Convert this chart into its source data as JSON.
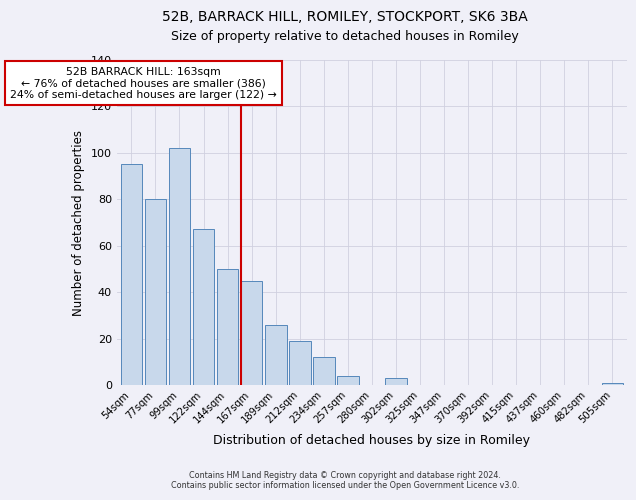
{
  "title": "52B, BARRACK HILL, ROMILEY, STOCKPORT, SK6 3BA",
  "subtitle": "Size of property relative to detached houses in Romiley",
  "xlabel": "Distribution of detached houses by size in Romiley",
  "ylabel": "Number of detached properties",
  "categories": [
    "54sqm",
    "77sqm",
    "99sqm",
    "122sqm",
    "144sqm",
    "167sqm",
    "189sqm",
    "212sqm",
    "234sqm",
    "257sqm",
    "280sqm",
    "302sqm",
    "325sqm",
    "347sqm",
    "370sqm",
    "392sqm",
    "415sqm",
    "437sqm",
    "460sqm",
    "482sqm",
    "505sqm"
  ],
  "values": [
    95,
    80,
    102,
    67,
    50,
    45,
    26,
    19,
    12,
    4,
    0,
    3,
    0,
    0,
    0,
    0,
    0,
    0,
    0,
    0,
    1
  ],
  "bar_color": "#c8d8eb",
  "bar_edge_color": "#5588bb",
  "vline_x_idx": 5,
  "annotation_title": "52B BARRACK HILL: 163sqm",
  "annotation_line1": "← 76% of detached houses are smaller (386)",
  "annotation_line2": "24% of semi-detached houses are larger (122) →",
  "annotation_box_color": "#cc0000",
  "ylim": [
    0,
    140
  ],
  "yticks": [
    0,
    20,
    40,
    60,
    80,
    100,
    120,
    140
  ],
  "footer1": "Contains HM Land Registry data © Crown copyright and database right 2024.",
  "footer2": "Contains public sector information licensed under the Open Government Licence v3.0.",
  "background_color": "#f0f0f8",
  "grid_color": "#d0d0e0"
}
